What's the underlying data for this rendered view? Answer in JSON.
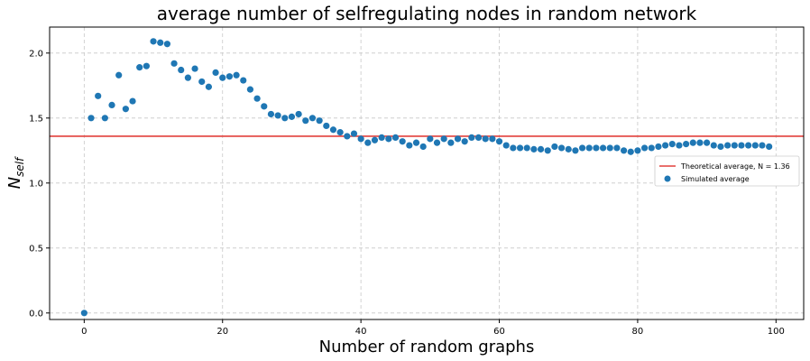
{
  "chart_data": {
    "type": "scatter",
    "title": "average number of selfregulating nodes  in random network",
    "xlabel": "Number of random graphs",
    "ylabel": "N",
    "ylabel_subscript": "self",
    "xlim": [
      -5,
      104
    ],
    "ylim": [
      -0.05,
      2.2
    ],
    "xticks": [
      0,
      20,
      40,
      60,
      80,
      100
    ],
    "yticks": [
      0.0,
      0.5,
      1.0,
      1.5,
      2.0
    ],
    "xtick_labels": [
      "0",
      "20",
      "40",
      "60",
      "80",
      "100"
    ],
    "ytick_labels": [
      "0.0",
      "0.5",
      "1.0",
      "1.5",
      "2.0"
    ],
    "grid": true,
    "legend_position": "center-right",
    "hline": {
      "y": 1.36,
      "name": "Theoretical average, N = 1.36",
      "color": "#e2413b"
    },
    "series": [
      {
        "name": "Simulated average",
        "color": "#1f77b4",
        "x": [
          0,
          1,
          2,
          3,
          4,
          5,
          6,
          7,
          8,
          9,
          10,
          11,
          12,
          13,
          14,
          15,
          16,
          17,
          18,
          19,
          20,
          21,
          22,
          23,
          24,
          25,
          26,
          27,
          28,
          29,
          30,
          31,
          32,
          33,
          34,
          35,
          36,
          37,
          38,
          39,
          40,
          41,
          42,
          43,
          44,
          45,
          46,
          47,
          48,
          49,
          50,
          51,
          52,
          53,
          54,
          55,
          56,
          57,
          58,
          59,
          60,
          61,
          62,
          63,
          64,
          65,
          66,
          67,
          68,
          69,
          70,
          71,
          72,
          73,
          74,
          75,
          76,
          77,
          78,
          79,
          80,
          81,
          82,
          83,
          84,
          85,
          86,
          87,
          88,
          89,
          90,
          91,
          92,
          93,
          94,
          95,
          96,
          97,
          98,
          99
        ],
        "y": [
          0.0,
          1.5,
          1.67,
          1.5,
          1.6,
          1.83,
          1.57,
          1.63,
          1.89,
          1.9,
          2.09,
          2.08,
          2.07,
          1.92,
          1.87,
          1.81,
          1.88,
          1.78,
          1.74,
          1.85,
          1.81,
          1.82,
          1.83,
          1.79,
          1.72,
          1.65,
          1.59,
          1.53,
          1.52,
          1.5,
          1.51,
          1.53,
          1.48,
          1.5,
          1.48,
          1.44,
          1.41,
          1.39,
          1.36,
          1.38,
          1.34,
          1.31,
          1.33,
          1.35,
          1.34,
          1.35,
          1.32,
          1.29,
          1.31,
          1.28,
          1.34,
          1.31,
          1.34,
          1.31,
          1.34,
          1.32,
          1.35,
          1.35,
          1.34,
          1.34,
          1.32,
          1.29,
          1.27,
          1.27,
          1.27,
          1.26,
          1.26,
          1.25,
          1.28,
          1.27,
          1.26,
          1.25,
          1.27,
          1.27,
          1.27,
          1.27,
          1.27,
          1.27,
          1.25,
          1.24,
          1.25,
          1.27,
          1.27,
          1.28,
          1.29,
          1.3,
          1.29,
          1.3,
          1.31,
          1.31,
          1.31,
          1.29,
          1.28,
          1.29,
          1.29,
          1.29,
          1.29,
          1.29,
          1.29,
          1.28
        ]
      }
    ]
  }
}
